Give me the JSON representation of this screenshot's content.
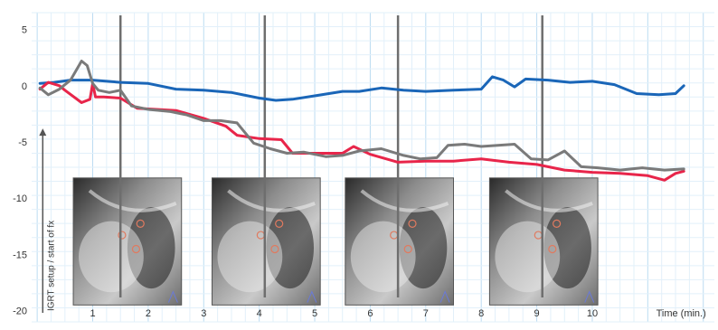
{
  "chart_data": {
    "type": "line",
    "title": "",
    "xlabel": "Time (min.)",
    "ylabel": "",
    "xlim": [
      -0.1,
      12.2
    ],
    "ylim": [
      -21,
      6.5
    ],
    "grid": true,
    "x_ticks": [
      1,
      2,
      3,
      4,
      5,
      6,
      7,
      8,
      9,
      10
    ],
    "x_tick_labels": [
      "1",
      "2",
      "3",
      "4",
      "5",
      "6",
      "7",
      "8",
      "9",
      "10"
    ],
    "y_ticks": [
      5,
      0,
      -5,
      -10,
      -15,
      -20
    ],
    "y_tick_labels": [
      "5",
      "0",
      "-5",
      "-10",
      "-15",
      "-20"
    ],
    "annotation": "IGRT setup / start of fx",
    "vertical_markers": [
      1.5,
      4.1,
      6.5,
      9.1
    ],
    "inset_images": [
      {
        "x_start": 0.65,
        "x_end": 2.6,
        "name": "kv-image-1"
      },
      {
        "x_start": 3.15,
        "x_end": 5.1,
        "name": "kv-image-2"
      },
      {
        "x_start": 5.55,
        "x_end": 7.5,
        "name": "kv-image-3"
      },
      {
        "x_start": 8.15,
        "x_end": 10.1,
        "name": "kv-image-4"
      }
    ],
    "series": [
      {
        "color": "#1a66b8",
        "x": [
          0.05,
          0.3,
          0.6,
          1.0,
          1.5,
          2.0,
          2.5,
          3.0,
          3.5,
          4.0,
          4.3,
          4.6,
          5.0,
          5.5,
          5.8,
          6.2,
          6.6,
          7.0,
          7.5,
          8.0,
          8.2,
          8.4,
          8.6,
          8.8,
          9.2,
          9.6,
          10.0,
          10.4,
          10.8,
          11.2,
          11.5,
          11.65
        ],
        "y": [
          0.2,
          0.3,
          0.5,
          0.5,
          0.3,
          0.2,
          -0.3,
          -0.4,
          -0.6,
          -1.1,
          -1.3,
          -1.2,
          -0.9,
          -0.5,
          -0.5,
          -0.2,
          -0.4,
          -0.5,
          -0.4,
          -0.3,
          0.8,
          0.5,
          -0.1,
          0.6,
          0.5,
          0.3,
          0.4,
          0.1,
          -0.7,
          -0.8,
          -0.7,
          0.0
        ]
      },
      {
        "color": "#e8254a",
        "x": [
          0.05,
          0.2,
          0.4,
          0.5,
          0.8,
          0.95,
          1.0,
          1.05,
          1.2,
          1.5,
          1.8,
          2.5,
          3.0,
          3.4,
          3.6,
          4.0,
          4.4,
          4.6,
          5.0,
          5.5,
          5.7,
          6.0,
          6.5,
          7.0,
          7.5,
          8.0,
          8.5,
          9.0,
          9.5,
          10.0,
          10.5,
          11.0,
          11.3,
          11.5,
          11.65
        ],
        "y": [
          -0.3,
          0.3,
          0.0,
          -0.4,
          -1.5,
          -1.2,
          0.2,
          -1.0,
          -1.0,
          -1.1,
          -2.0,
          -2.2,
          -2.9,
          -3.6,
          -4.4,
          -4.7,
          -4.8,
          -6.0,
          -6.0,
          -6.0,
          -5.4,
          -6.1,
          -6.8,
          -6.7,
          -6.7,
          -6.5,
          -6.8,
          -7.0,
          -7.5,
          -7.7,
          -7.8,
          -8.0,
          -8.4,
          -7.8,
          -7.6
        ]
      },
      {
        "color": "#7a7a7a",
        "x": [
          0.05,
          0.2,
          0.4,
          0.6,
          0.8,
          0.9,
          1.0,
          1.1,
          1.3,
          1.5,
          1.7,
          2.0,
          2.4,
          2.7,
          3.0,
          3.3,
          3.6,
          3.9,
          4.2,
          4.5,
          4.8,
          5.2,
          5.5,
          5.8,
          6.2,
          6.6,
          6.9,
          7.2,
          7.4,
          7.7,
          8.0,
          8.3,
          8.6,
          8.9,
          9.2,
          9.5,
          9.8,
          10.1,
          10.5,
          10.9,
          11.3,
          11.65
        ],
        "y": [
          -0.2,
          -0.8,
          -0.3,
          0.5,
          2.2,
          1.8,
          0.2,
          -0.4,
          -0.6,
          -0.4,
          -1.8,
          -2.1,
          -2.3,
          -2.6,
          -3.1,
          -3.1,
          -3.3,
          -5.1,
          -5.6,
          -6.0,
          -5.9,
          -6.3,
          -6.2,
          -5.8,
          -5.6,
          -6.2,
          -6.5,
          -6.4,
          -5.3,
          -5.2,
          -5.4,
          -5.3,
          -5.2,
          -6.5,
          -6.6,
          -5.8,
          -7.2,
          -7.3,
          -7.5,
          -7.3,
          -7.5,
          -7.4
        ]
      }
    ]
  }
}
